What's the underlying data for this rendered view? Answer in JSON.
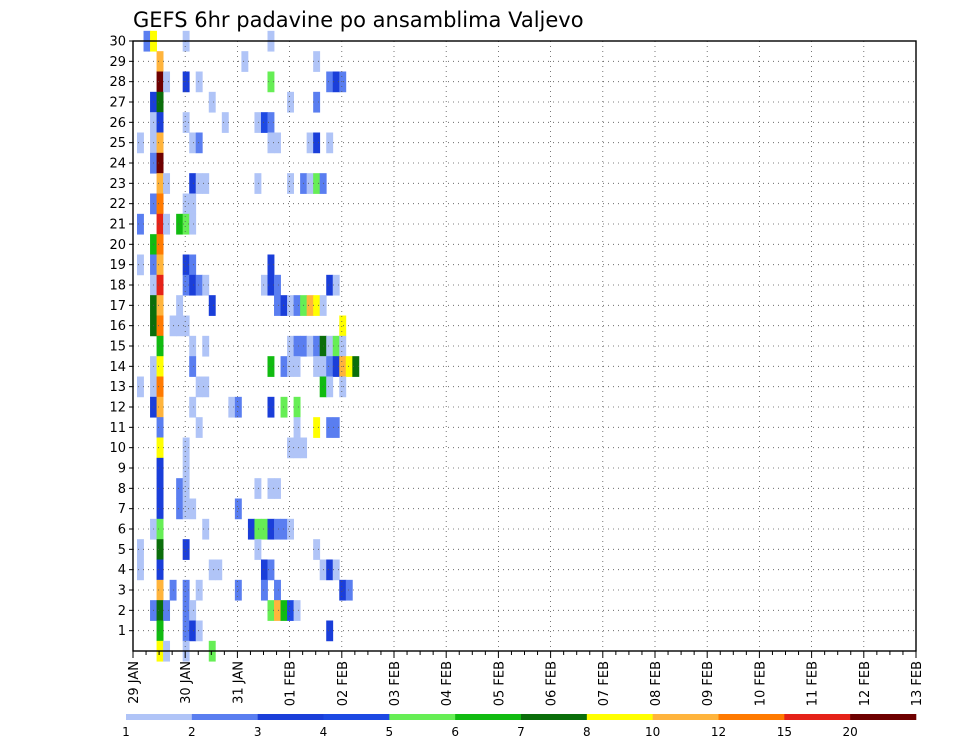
{
  "chart_data": {
    "type": "heatmap",
    "title": "GEFS 6hr padavine po ansamblima Valjevo",
    "xlabel": "",
    "ylabel": "",
    "y_ticks": [
      1,
      2,
      3,
      4,
      5,
      6,
      7,
      8,
      9,
      10,
      11,
      12,
      13,
      14,
      15,
      16,
      17,
      18,
      19,
      20,
      21,
      22,
      23,
      24,
      25,
      26,
      27,
      28,
      29,
      30
    ],
    "y_range": [
      0,
      30
    ],
    "x_ticks": [
      "29 JAN",
      "30 JAN",
      "31 JAN",
      "01 FEB",
      "02 FEB",
      "03 FEB",
      "04 FEB",
      "05 FEB",
      "06 FEB",
      "07 FEB",
      "08 FEB",
      "09 FEB",
      "10 FEB",
      "11 FEB",
      "12 FEB",
      "13 FEB"
    ],
    "steps_per_day": 4,
    "x_range_steps": [
      0,
      60
    ],
    "grid": true,
    "colorbar": {
      "placement": "bottom",
      "labels": [
        "1",
        "2",
        "3",
        "4",
        "5",
        "6",
        "7",
        "8",
        "10",
        "12",
        "15",
        "20"
      ],
      "colors": [
        "#b0c4f7",
        "#5a7ef0",
        "#1a3ed9",
        "#1d49e3",
        "#66ee55",
        "#11bb11",
        "#0b6e0b",
        "#ffff00",
        "#ffb43c",
        "#ff7a00",
        "#e52218",
        "#6e0000"
      ]
    },
    "cells": [
      [
        1,
        30,
        1
      ],
      [
        2,
        30,
        7
      ],
      [
        7,
        30,
        0
      ],
      [
        20,
        30,
        0
      ],
      [
        3,
        29,
        8
      ],
      [
        16,
        29,
        0
      ],
      [
        27,
        29,
        0
      ],
      [
        3,
        28,
        11
      ],
      [
        4,
        28,
        0
      ],
      [
        7,
        28,
        2
      ],
      [
        9,
        28,
        0
      ],
      [
        20,
        28,
        4
      ],
      [
        29,
        28,
        1
      ],
      [
        30,
        28,
        2
      ],
      [
        31,
        28,
        1
      ],
      [
        2,
        27,
        2
      ],
      [
        3,
        27,
        6
      ],
      [
        11,
        27,
        0
      ],
      [
        23,
        27,
        0
      ],
      [
        27,
        27,
        1
      ],
      [
        2,
        26,
        0
      ],
      [
        3,
        26,
        2
      ],
      [
        7,
        26,
        0
      ],
      [
        13,
        26,
        0
      ],
      [
        18,
        26,
        0
      ],
      [
        19,
        26,
        3
      ],
      [
        20,
        26,
        1
      ],
      [
        0,
        25,
        0
      ],
      [
        2,
        25,
        0
      ],
      [
        3,
        25,
        8
      ],
      [
        8,
        25,
        0
      ],
      [
        9,
        25,
        1
      ],
      [
        20,
        25,
        0
      ],
      [
        21,
        25,
        0
      ],
      [
        26,
        25,
        0
      ],
      [
        27,
        25,
        2
      ],
      [
        29,
        25,
        0
      ],
      [
        2,
        24,
        1
      ],
      [
        3,
        24,
        11
      ],
      [
        3,
        23,
        8
      ],
      [
        4,
        23,
        0
      ],
      [
        8,
        23,
        2
      ],
      [
        9,
        23,
        0
      ],
      [
        10,
        23,
        0
      ],
      [
        18,
        23,
        0
      ],
      [
        23,
        23,
        0
      ],
      [
        25,
        23,
        1
      ],
      [
        26,
        23,
        0
      ],
      [
        27,
        23,
        4
      ],
      [
        28,
        23,
        1
      ],
      [
        2,
        22,
        1
      ],
      [
        3,
        22,
        9
      ],
      [
        7,
        22,
        0
      ],
      [
        8,
        22,
        0
      ],
      [
        0,
        21,
        1
      ],
      [
        3,
        21,
        10
      ],
      [
        4,
        21,
        0
      ],
      [
        6,
        21,
        5
      ],
      [
        7,
        21,
        4
      ],
      [
        8,
        21,
        0
      ],
      [
        2,
        20,
        5
      ],
      [
        3,
        20,
        9
      ],
      [
        0,
        19,
        0
      ],
      [
        2,
        19,
        1
      ],
      [
        3,
        19,
        8
      ],
      [
        7,
        19,
        2
      ],
      [
        8,
        19,
        1
      ],
      [
        20,
        19,
        2
      ],
      [
        2,
        18,
        0
      ],
      [
        3,
        18,
        10
      ],
      [
        7,
        18,
        1
      ],
      [
        8,
        18,
        2
      ],
      [
        9,
        18,
        1
      ],
      [
        10,
        18,
        0
      ],
      [
        19,
        18,
        0
      ],
      [
        20,
        18,
        2
      ],
      [
        21,
        18,
        1
      ],
      [
        29,
        18,
        2
      ],
      [
        30,
        18,
        0
      ],
      [
        2,
        17,
        6
      ],
      [
        3,
        17,
        8
      ],
      [
        6,
        17,
        0
      ],
      [
        11,
        17,
        2
      ],
      [
        21,
        17,
        1
      ],
      [
        22,
        17,
        2
      ],
      [
        23,
        17,
        0
      ],
      [
        24,
        17,
        1
      ],
      [
        25,
        17,
        4
      ],
      [
        26,
        17,
        8
      ],
      [
        27,
        17,
        7
      ],
      [
        28,
        17,
        0
      ],
      [
        2,
        16,
        6
      ],
      [
        3,
        16,
        9
      ],
      [
        5,
        16,
        0
      ],
      [
        6,
        16,
        0
      ],
      [
        7,
        16,
        0
      ],
      [
        31,
        16,
        7
      ],
      [
        3,
        15,
        5
      ],
      [
        8,
        15,
        0
      ],
      [
        10,
        15,
        0
      ],
      [
        23,
        15,
        0
      ],
      [
        24,
        15,
        1
      ],
      [
        25,
        15,
        1
      ],
      [
        26,
        15,
        0
      ],
      [
        27,
        15,
        1
      ],
      [
        28,
        15,
        6
      ],
      [
        29,
        15,
        0
      ],
      [
        30,
        15,
        4
      ],
      [
        31,
        15,
        0
      ],
      [
        2,
        14,
        0
      ],
      [
        3,
        14,
        7
      ],
      [
        8,
        14,
        1
      ],
      [
        20,
        14,
        5
      ],
      [
        22,
        14,
        1
      ],
      [
        23,
        14,
        0
      ],
      [
        24,
        14,
        0
      ],
      [
        27,
        14,
        0
      ],
      [
        28,
        14,
        0
      ],
      [
        29,
        14,
        1
      ],
      [
        30,
        14,
        2
      ],
      [
        31,
        14,
        8
      ],
      [
        32,
        14,
        7
      ],
      [
        33,
        14,
        6
      ],
      [
        0,
        13,
        0
      ],
      [
        2,
        13,
        0
      ],
      [
        3,
        13,
        9
      ],
      [
        9,
        13,
        0
      ],
      [
        10,
        13,
        0
      ],
      [
        28,
        13,
        5
      ],
      [
        29,
        13,
        0
      ],
      [
        31,
        13,
        0
      ],
      [
        2,
        12,
        2
      ],
      [
        3,
        12,
        8
      ],
      [
        8,
        12,
        0
      ],
      [
        14,
        12,
        0
      ],
      [
        15,
        12,
        1
      ],
      [
        20,
        12,
        2
      ],
      [
        22,
        12,
        4
      ],
      [
        24,
        12,
        4
      ],
      [
        3,
        11,
        1
      ],
      [
        9,
        11,
        0
      ],
      [
        24,
        11,
        0
      ],
      [
        27,
        11,
        7
      ],
      [
        29,
        11,
        1
      ],
      [
        30,
        11,
        1
      ],
      [
        3,
        10,
        7
      ],
      [
        7,
        10,
        0
      ],
      [
        23,
        10,
        0
      ],
      [
        24,
        10,
        0
      ],
      [
        25,
        10,
        0
      ],
      [
        3,
        9,
        2
      ],
      [
        7,
        9,
        0
      ],
      [
        3,
        8,
        2
      ],
      [
        6,
        8,
        1
      ],
      [
        7,
        8,
        0
      ],
      [
        18,
        8,
        0
      ],
      [
        20,
        8,
        0
      ],
      [
        21,
        8,
        0
      ],
      [
        3,
        7,
        2
      ],
      [
        6,
        7,
        1
      ],
      [
        7,
        7,
        0
      ],
      [
        8,
        7,
        0
      ],
      [
        15,
        7,
        1
      ],
      [
        2,
        6,
        0
      ],
      [
        3,
        6,
        4
      ],
      [
        10,
        6,
        0
      ],
      [
        17,
        6,
        2
      ],
      [
        18,
        6,
        4
      ],
      [
        19,
        6,
        4
      ],
      [
        20,
        6,
        2
      ],
      [
        21,
        6,
        1
      ],
      [
        22,
        6,
        1
      ],
      [
        23,
        6,
        0
      ],
      [
        0,
        5,
        0
      ],
      [
        3,
        5,
        6
      ],
      [
        7,
        5,
        2
      ],
      [
        18,
        5,
        0
      ],
      [
        27,
        5,
        0
      ],
      [
        0,
        4,
        0
      ],
      [
        3,
        4,
        2
      ],
      [
        11,
        4,
        0
      ],
      [
        12,
        4,
        0
      ],
      [
        19,
        4,
        2
      ],
      [
        20,
        4,
        1
      ],
      [
        28,
        4,
        0
      ],
      [
        29,
        4,
        2
      ],
      [
        30,
        4,
        0
      ],
      [
        3,
        3,
        8
      ],
      [
        5,
        3,
        1
      ],
      [
        7,
        3,
        1
      ],
      [
        9,
        3,
        0
      ],
      [
        15,
        3,
        1
      ],
      [
        19,
        3,
        1
      ],
      [
        21,
        3,
        1
      ],
      [
        31,
        3,
        2
      ],
      [
        32,
        3,
        1
      ],
      [
        2,
        2,
        1
      ],
      [
        3,
        2,
        6
      ],
      [
        4,
        2,
        1
      ],
      [
        7,
        2,
        1
      ],
      [
        8,
        2,
        0
      ],
      [
        20,
        2,
        4
      ],
      [
        21,
        2,
        8
      ],
      [
        22,
        2,
        5
      ],
      [
        23,
        2,
        3
      ],
      [
        24,
        2,
        0
      ],
      [
        3,
        1,
        5
      ],
      [
        7,
        1,
        1
      ],
      [
        8,
        1,
        2
      ],
      [
        9,
        1,
        0
      ],
      [
        29,
        1,
        2
      ],
      [
        3,
        0,
        7
      ],
      [
        4,
        0,
        0
      ],
      [
        7,
        0,
        0
      ],
      [
        11,
        0,
        4
      ]
    ]
  }
}
